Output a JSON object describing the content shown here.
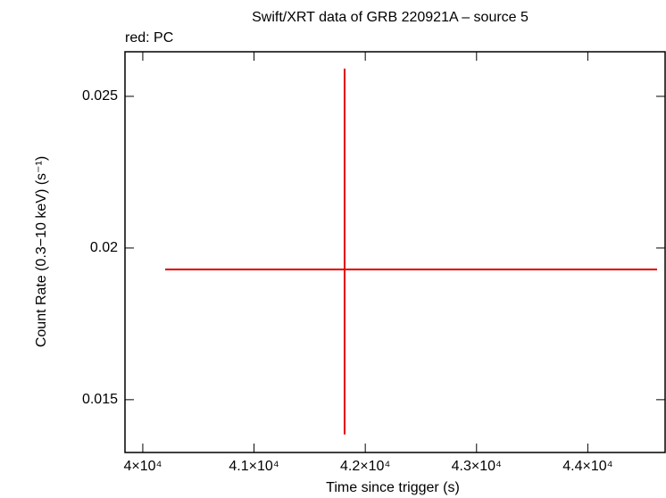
{
  "chart_data": {
    "type": "errorbar",
    "title": "Swift/XRT data of GRB 220921A – source 5",
    "annotation": "red: PC",
    "xlabel": "Time since trigger (s)",
    "ylabel": "Count Rate (0.3−10 keV) (s⁻¹)",
    "xlim": [
      39840,
      44695
    ],
    "ylim": [
      0.01326,
      0.02647
    ],
    "xticks": [
      {
        "value": 40000,
        "label": "4×10⁴"
      },
      {
        "value": 41000,
        "label": "4.1×10⁴"
      },
      {
        "value": 42000,
        "label": "4.2×10⁴"
      },
      {
        "value": 43000,
        "label": "4.3×10⁴"
      },
      {
        "value": 44000,
        "label": "4.4×10⁴"
      }
    ],
    "yticks": [
      0.015,
      0.02,
      0.025
    ],
    "series": [
      {
        "color": "#e00000",
        "x": [
          41814
        ],
        "y": [
          0.019294
        ],
        "xerr_minus": [
          1613
        ],
        "xerr_plus": [
          2809
        ],
        "yerr_minus": [
          0.00544
        ],
        "yerr_plus": [
          0.00662
        ]
      }
    ]
  }
}
